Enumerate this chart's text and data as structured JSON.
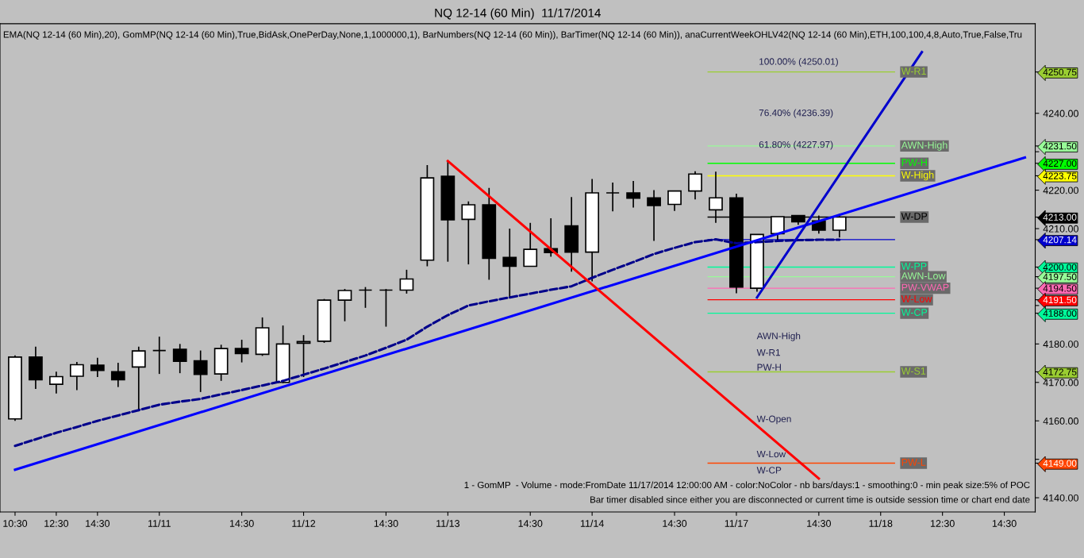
{
  "chart_data": {
    "type": "candlestick",
    "title": "NQ 12-14 (60 Min)  11/17/2014",
    "categories": [
      "10:30",
      null,
      "12:30",
      null,
      "14:30",
      null,
      null,
      "11/11",
      null,
      null,
      null,
      "14:30",
      null,
      null,
      "11/12",
      null,
      null,
      null,
      "14:30",
      null,
      null,
      "11/13",
      null,
      null,
      null,
      "14:30",
      null,
      null,
      "11/14",
      null,
      null,
      null,
      "14:30",
      null,
      null,
      "11/17",
      null,
      null,
      null,
      "14:30",
      null,
      null,
      "11/18",
      null,
      null,
      "12:30",
      null,
      null,
      "14:30",
      null
    ],
    "ohlc": [
      [
        4160.5,
        4177.0,
        4160.0,
        4176.6
      ],
      [
        4176.6,
        4179.3,
        4168.3,
        4170.7
      ],
      [
        4169.5,
        4172.8,
        4167.1,
        4171.5
      ],
      [
        4171.6,
        4175.3,
        4168.0,
        4174.6
      ],
      [
        4174.5,
        4176.4,
        4171.4,
        4173.1
      ],
      [
        4172.8,
        4175.1,
        4168.8,
        4170.7
      ],
      [
        4174.0,
        4179.3,
        4162.5,
        4178.2
      ],
      [
        4178.3,
        4181.9,
        4172.2,
        4178.3
      ],
      [
        4178.6,
        4180.0,
        4172.4,
        4175.5
      ],
      [
        4175.6,
        4178.3,
        4167.5,
        4172.1
      ],
      [
        4172.2,
        4179.8,
        4170.4,
        4178.8
      ],
      [
        4178.8,
        4181.1,
        4175.2,
        4177.5
      ],
      [
        4177.3,
        4186.9,
        4176.9,
        4184.2
      ],
      [
        4170.0,
        4184.8,
        4169.8,
        4180.0
      ],
      [
        4180.2,
        4182.3,
        4171.4,
        4180.6
      ],
      [
        4180.7,
        4191.7,
        4180.3,
        4191.4
      ],
      [
        4191.4,
        4194.3,
        4185.9,
        4193.9
      ],
      [
        4194.0,
        4194.8,
        4189.4,
        4194.0
      ],
      [
        4194.0,
        4194.3,
        4184.5,
        4194.0
      ],
      [
        4194.0,
        4199.3,
        4193.1,
        4196.9
      ],
      [
        4201.8,
        4226.5,
        4200.2,
        4223.2
      ],
      [
        4223.6,
        4227.5,
        4201.4,
        4212.3
      ],
      [
        4212.4,
        4217.1,
        4200.7,
        4216.2
      ],
      [
        4216.2,
        4220.6,
        4196.7,
        4202.3
      ],
      [
        4202.5,
        4210.0,
        4192.1,
        4200.2
      ],
      [
        4200.2,
        4211.5,
        4200.2,
        4204.6
      ],
      [
        4204.8,
        4212.7,
        4202.7,
        4203.8
      ],
      [
        4210.7,
        4218.2,
        4198.8,
        4203.9
      ],
      [
        4203.9,
        4222.9,
        4196.3,
        4219.3
      ],
      [
        4219.3,
        4222.0,
        4214.5,
        4219.3
      ],
      [
        4219.3,
        4222.4,
        4215.5,
        4217.9
      ],
      [
        4218.0,
        4220.0,
        4206.8,
        4216.0
      ],
      [
        4216.3,
        4219.8,
        4214.6,
        4219.8
      ],
      [
        4219.8,
        4224.9,
        4217.6,
        4224.2
      ],
      [
        4214.9,
        4224.8,
        4211.5,
        4218.0
      ],
      [
        4218.0,
        4219.1,
        4193.2,
        4194.8
      ],
      [
        4194.5,
        4208.5,
        4193.6,
        4208.5
      ],
      [
        4208.7,
        4213.1,
        4206.8,
        4213.1
      ],
      [
        4213.4,
        4213.4,
        4211.0,
        4211.8
      ],
      [
        4212.0,
        4213.4,
        4208.7,
        4209.6
      ],
      [
        4209.6,
        4213.9,
        4207.7,
        4213.0
      ],
      null,
      null,
      null,
      null,
      null,
      null,
      null,
      null,
      null
    ],
    "series": [
      {
        "type": "line",
        "color": "#00008b",
        "line_style": "dashed",
        "values": [
          4153.5,
          4155.2,
          4156.9,
          4158.4,
          4160.0,
          4161.4,
          4162.8,
          4164.2,
          4165.0,
          4165.7,
          4166.9,
          4168.0,
          4169.2,
          4170.4,
          4172.0,
          4173.6,
          4175.3,
          4177.0,
          4179.0,
          4181.1,
          4184.5,
          4187.5,
          4190.0,
          4191.1,
          4192.1,
          4193.1,
          4194.1,
          4195.0,
          4197.2,
          4199.3,
          4201.3,
          4203.4,
          4205.0,
          4206.5,
          4207.2,
          4206.2,
          4206.5,
          4206.8,
          4207.0,
          4207.1,
          4207.1,
          null,
          null,
          null,
          null,
          null,
          null,
          null,
          null,
          null
        ]
      },
      {
        "type": "line",
        "color": "#0000ff",
        "line_style": "solid",
        "values": [
          4147.3,
          null,
          null,
          null,
          null,
          null,
          null,
          null,
          null,
          null,
          null,
          null,
          null,
          null,
          null,
          null,
          null,
          null,
          null,
          null,
          null,
          null,
          null,
          null,
          null,
          null,
          null,
          null,
          null,
          null,
          null,
          null,
          null,
          null,
          null,
          null,
          null,
          null,
          null,
          null,
          null,
          null,
          null,
          null,
          null,
          null,
          null,
          null,
          null,
          4228.5
        ]
      },
      {
        "type": "line",
        "color": "#ff0000",
        "line_style": "solid",
        "values": [
          null,
          null,
          null,
          null,
          null,
          null,
          null,
          null,
          null,
          null,
          null,
          null,
          null,
          null,
          null,
          null,
          null,
          null,
          null,
          null,
          null,
          4227.6,
          null,
          null,
          null,
          null,
          null,
          null,
          null,
          null,
          null,
          null,
          null,
          null,
          null,
          null,
          null,
          null,
          null,
          4145.0,
          null,
          null,
          null,
          null,
          null,
          null,
          null,
          null,
          null,
          null
        ]
      },
      {
        "type": "line",
        "color": "#0000cd",
        "line_style": "solid",
        "values": [
          null,
          null,
          null,
          null,
          null,
          null,
          null,
          null,
          null,
          null,
          null,
          null,
          null,
          null,
          null,
          null,
          null,
          null,
          null,
          null,
          null,
          null,
          null,
          null,
          null,
          null,
          null,
          null,
          null,
          null,
          null,
          null,
          null,
          null,
          null,
          null,
          4192.1,
          null,
          null,
          null,
          null,
          null,
          null,
          null,
          4255.9,
          null,
          null,
          null,
          null,
          null
        ]
      }
    ],
    "ylim": [
      4136.3,
      4263.3
    ],
    "yticks": [
      {
        "value": 4140,
        "label": "4140.00"
      },
      {
        "value": 4150,
        "label": null
      },
      {
        "value": 4160,
        "label": "4160.00"
      },
      {
        "value": 4170,
        "label": "4170.00"
      },
      {
        "value": 4180,
        "label": "4180.00"
      },
      {
        "value": 4190,
        "label": null
      },
      {
        "value": 4210,
        "label": "4210.00"
      },
      {
        "value": 4220,
        "label": "4220.00"
      },
      {
        "value": 4230,
        "label": null
      },
      {
        "value": 4240,
        "label": "4240.00"
      },
      {
        "value": 4250.75,
        "label": "4250.75"
      },
      {
        "value": 4231.5,
        "label": "4231.50"
      },
      {
        "value": 4227.0,
        "label": "4227.00"
      },
      {
        "value": 4223.75,
        "label": "4223.75"
      },
      {
        "value": 4213.0,
        "label": "4213.00"
      },
      {
        "value": 4207.14,
        "label": "4207.14"
      },
      {
        "value": 4200.0,
        "label": "4200.00"
      },
      {
        "value": 4197.5,
        "label": "4197.50"
      },
      {
        "value": 4194.5,
        "label": "4194.50"
      },
      {
        "value": 4191.5,
        "label": "4191.50"
      },
      {
        "value": 4188.0,
        "label": "4188.00"
      },
      {
        "value": 4172.75,
        "label": "4172.75"
      },
      {
        "value": 4149.0,
        "label": "4149.00"
      }
    ],
    "ref_lines": [
      {
        "axis": "y",
        "value": 4250.75,
        "label": "W-R1",
        "color": "#9acd32"
      },
      {
        "axis": "y",
        "value": 4231.5,
        "label": "AWN-High",
        "color": "#98fb98"
      },
      {
        "axis": "y",
        "value": 4227.0,
        "label": "PW-H",
        "color": "#00ff00"
      },
      {
        "axis": "y",
        "value": 4223.75,
        "label": "W-High",
        "color": "#ffff00"
      },
      {
        "axis": "y",
        "value": 4213.0,
        "label": "W-DP",
        "color": "#000000"
      },
      {
        "axis": "y",
        "value": 4207.14,
        "label": null,
        "color": "#0000cd"
      },
      {
        "axis": "y",
        "value": 4200.0,
        "label": "W-PP",
        "color": "#00fa9a"
      },
      {
        "axis": "y",
        "value": 4197.5,
        "label": "AWN-Low",
        "color": "#98fb98"
      },
      {
        "axis": "y",
        "value": 4194.5,
        "label": "PW-VWAP",
        "color": "#ff69b4"
      },
      {
        "axis": "y",
        "value": 4191.5,
        "label": "W-Low",
        "color": "#ff0000"
      },
      {
        "axis": "y",
        "value": 4188.0,
        "label": "W-CP",
        "color": "#00fa9a"
      },
      {
        "axis": "y",
        "value": 4172.75,
        "label": "W-S1",
        "color": "#9acd32"
      },
      {
        "axis": "y",
        "value": 4149.0,
        "label": "PW-L",
        "color": "#ff4500"
      }
    ],
    "annotations": [
      "EMA(NQ 12-14 (60 Min),20), GomMP(NQ 12-14 (60 Min),True,BidAsk,OnePerDay,None,1,1000000,1), BarNumbers(NQ 12-14 (60 Min)), BarTimer(NQ 12-14 (60 Min)), anaCurrentWeekOHLV42(NQ 12-14 (60 Min),ETH,100,100,4,8,Auto,True,False,Tru",
      "1 - GomMP  - Volume - mode:FromDate 11/17/2014 12:00:00 AM - color:NoColor - nb bars/days:1 - smoothing:0 - min peak size:5% of POC",
      "Bar timer disabled since either you are disconnected or current time is outside session time or chart end date",
      "100.00% (4250.01)",
      "76.40% (4236.39)",
      "61.80% (4227.97)",
      "AWN-High",
      "W-R1",
      "PW-H",
      "W-Open",
      "W-Low",
      "W-CP"
    ],
    "grid": false,
    "legend": false
  }
}
